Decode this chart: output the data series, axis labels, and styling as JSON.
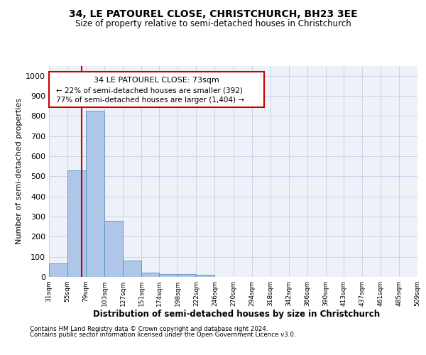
{
  "title1": "34, LE PATOUREL CLOSE, CHRISTCHURCH, BH23 3EE",
  "title2": "Size of property relative to semi-detached houses in Christchurch",
  "xlabel": "Distribution of semi-detached houses by size in Christchurch",
  "ylabel": "Number of semi-detached properties",
  "bin_edges": [
    31,
    55,
    79,
    103,
    127,
    151,
    174,
    198,
    222,
    246,
    270,
    294,
    318,
    342,
    366,
    390,
    413,
    437,
    461,
    485,
    509
  ],
  "bin_labels": [
    "31sqm",
    "55sqm",
    "79sqm",
    "103sqm",
    "127sqm",
    "151sqm",
    "174sqm",
    "198sqm",
    "222sqm",
    "246sqm",
    "270sqm",
    "294sqm",
    "318sqm",
    "342sqm",
    "366sqm",
    "390sqm",
    "413sqm",
    "437sqm",
    "461sqm",
    "485sqm",
    "509sqm"
  ],
  "bar_heights": [
    67,
    530,
    825,
    280,
    80,
    22,
    14,
    14,
    10,
    0,
    0,
    0,
    0,
    0,
    0,
    0,
    0,
    0,
    0,
    0
  ],
  "bar_color": "#aec6e8",
  "bar_edge_color": "#5a8fc2",
  "subject_value": 73,
  "subject_label": "34 LE PATOUREL CLOSE: 73sqm",
  "pct_smaller": 22,
  "pct_larger": 77,
  "n_smaller": 392,
  "n_larger": 1404,
  "ylim": [
    0,
    1050
  ],
  "red_color": "#cc0000",
  "footnote1": "Contains HM Land Registry data © Crown copyright and database right 2024.",
  "footnote2": "Contains public sector information licensed under the Open Government Licence v3.0.",
  "grid_color": "#c8d4e8",
  "bg_color": "#eef2f8"
}
